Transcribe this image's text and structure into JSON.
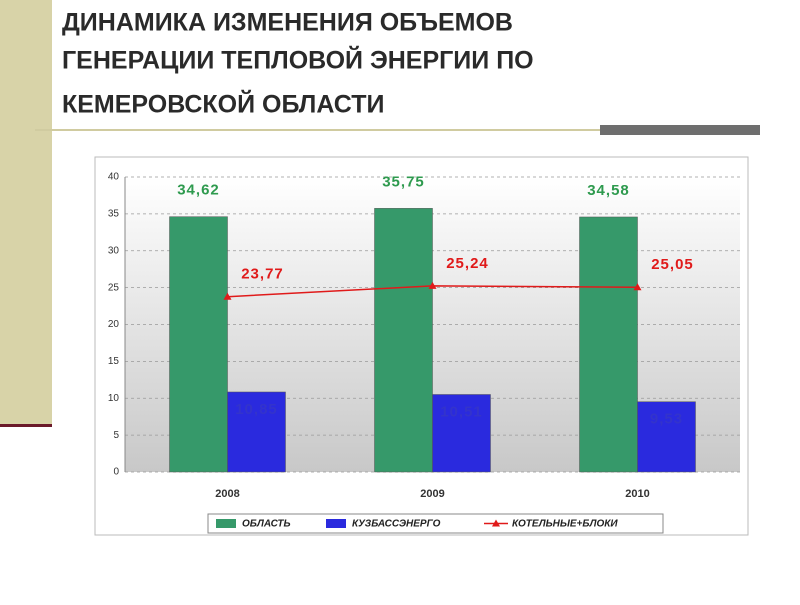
{
  "header": {
    "title_lines": [
      "ДИНАМИКА ИЗМЕНЕНИЯ ОБЪЕМОВ",
      "ГЕНЕРАЦИИ ТЕПЛОВОЙ ЭНЕРГИИ ПО",
      "КЕМЕРОВСКОЙ ОБЛАСТИ"
    ]
  },
  "chart_data": {
    "type": "bar",
    "categories": [
      "2008",
      "2009",
      "2010"
    ],
    "series": [
      {
        "name": "ОБЛАСТЬ",
        "type": "bar",
        "color": "#36996a",
        "values": [
          34.62,
          35.75,
          34.58
        ],
        "value_labels": [
          "34,62",
          "35,75",
          "34,58"
        ]
      },
      {
        "name": "КУЗБАССЭНЕРГО",
        "type": "bar",
        "color": "#2a2ade",
        "values": [
          10.85,
          10.51,
          9.53
        ],
        "value_labels": [
          "10,85",
          "10,51",
          "9,53"
        ]
      },
      {
        "name": "КОТЕЛЬНЫЕ+БЛОКИ",
        "type": "line",
        "color": "#e01a1a",
        "values": [
          23.77,
          25.24,
          25.05
        ],
        "value_labels": [
          "23,77",
          "25,24",
          "25,05"
        ]
      }
    ],
    "ylim": [
      0,
      40
    ],
    "yticks": [
      0,
      5,
      10,
      15,
      20,
      25,
      30,
      35,
      40
    ],
    "grid": true,
    "legend": "bottom"
  }
}
